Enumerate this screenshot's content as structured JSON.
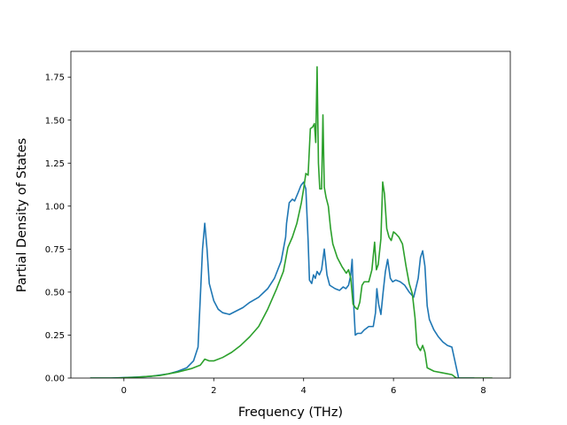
{
  "chart_data": {
    "type": "line",
    "xlabel": "Frequency (THz)",
    "ylabel": "Partial Density of States",
    "xlim": [
      -1.18,
      8.6
    ],
    "ylim": [
      0,
      1.9
    ],
    "xticks": [
      0,
      2,
      4,
      6,
      8
    ],
    "xtick_labels": [
      "0",
      "2",
      "4",
      "6",
      "8"
    ],
    "yticks": [
      0,
      0.25,
      0.5,
      0.75,
      1.0,
      1.25,
      1.5,
      1.75
    ],
    "ytick_labels": [
      "0.00",
      "0.25",
      "0.50",
      "0.75",
      "1.00",
      "1.25",
      "1.50",
      "1.75"
    ],
    "grid": false,
    "legend": "none",
    "series": [
      {
        "color": "#1f77b4",
        "x": [
          -0.75,
          -0.3,
          0.2,
          0.6,
          1.0,
          1.2,
          1.4,
          1.55,
          1.65,
          1.75,
          1.8,
          1.85,
          1.9,
          2.0,
          2.1,
          2.2,
          2.35,
          2.5,
          2.65,
          2.8,
          3.0,
          3.2,
          3.35,
          3.5,
          3.6,
          3.62,
          3.68,
          3.75,
          3.8,
          3.88,
          3.94,
          4.0,
          4.05,
          4.1,
          4.13,
          4.18,
          4.22,
          4.26,
          4.3,
          4.35,
          4.4,
          4.46,
          4.52,
          4.58,
          4.7,
          4.8,
          4.88,
          4.94,
          5.0,
          5.05,
          5.08,
          5.12,
          5.15,
          5.2,
          5.28,
          5.35,
          5.45,
          5.55,
          5.6,
          5.63,
          5.67,
          5.72,
          5.77,
          5.82,
          5.87,
          5.93,
          5.98,
          6.05,
          6.15,
          6.25,
          6.35,
          6.45,
          6.55,
          6.6,
          6.65,
          6.7,
          6.75,
          6.8,
          6.9,
          7.0,
          7.1,
          7.2,
          7.3,
          7.45,
          7.55,
          7.8
        ],
        "y": [
          0.0,
          0.0,
          0.005,
          0.01,
          0.025,
          0.04,
          0.06,
          0.1,
          0.18,
          0.75,
          0.9,
          0.75,
          0.55,
          0.45,
          0.4,
          0.38,
          0.37,
          0.39,
          0.41,
          0.44,
          0.47,
          0.52,
          0.58,
          0.68,
          0.82,
          0.9,
          1.02,
          1.04,
          1.03,
          1.08,
          1.12,
          1.14,
          1.1,
          0.8,
          0.57,
          0.55,
          0.6,
          0.58,
          0.62,
          0.6,
          0.63,
          0.75,
          0.6,
          0.54,
          0.52,
          0.51,
          0.53,
          0.52,
          0.54,
          0.6,
          0.69,
          0.4,
          0.25,
          0.26,
          0.26,
          0.28,
          0.3,
          0.3,
          0.38,
          0.52,
          0.43,
          0.37,
          0.5,
          0.62,
          0.69,
          0.58,
          0.56,
          0.57,
          0.56,
          0.54,
          0.5,
          0.47,
          0.58,
          0.7,
          0.74,
          0.65,
          0.42,
          0.34,
          0.28,
          0.24,
          0.21,
          0.19,
          0.18,
          0.0,
          0.0,
          0.0
        ]
      },
      {
        "color": "#2ca02c",
        "x": [
          -0.75,
          -0.2,
          0.3,
          0.8,
          1.2,
          1.5,
          1.7,
          1.8,
          1.9,
          2.0,
          2.2,
          2.4,
          2.6,
          2.8,
          3.0,
          3.2,
          3.4,
          3.55,
          3.65,
          3.75,
          3.85,
          3.95,
          4.0,
          4.05,
          4.1,
          4.15,
          4.2,
          4.24,
          4.27,
          4.3,
          4.33,
          4.36,
          4.4,
          4.43,
          4.46,
          4.5,
          4.55,
          4.6,
          4.65,
          4.75,
          4.85,
          4.95,
          5.0,
          5.05,
          5.1,
          5.15,
          5.2,
          5.25,
          5.3,
          5.35,
          5.45,
          5.52,
          5.58,
          5.62,
          5.66,
          5.72,
          5.76,
          5.8,
          5.85,
          5.9,
          5.95,
          6.0,
          6.05,
          6.12,
          6.2,
          6.28,
          6.35,
          6.42,
          6.48,
          6.52,
          6.55,
          6.6,
          6.65,
          6.7,
          6.75,
          6.9,
          7.1,
          7.3,
          7.4,
          7.6,
          8.2
        ],
        "y": [
          0.0,
          0.0,
          0.005,
          0.015,
          0.035,
          0.055,
          0.075,
          0.11,
          0.1,
          0.1,
          0.12,
          0.15,
          0.19,
          0.24,
          0.3,
          0.4,
          0.52,
          0.62,
          0.76,
          0.82,
          0.9,
          1.02,
          1.1,
          1.19,
          1.18,
          1.45,
          1.46,
          1.48,
          1.37,
          1.81,
          1.25,
          1.1,
          1.1,
          1.53,
          1.11,
          1.05,
          1.0,
          0.87,
          0.78,
          0.7,
          0.65,
          0.61,
          0.63,
          0.58,
          0.43,
          0.41,
          0.4,
          0.44,
          0.54,
          0.56,
          0.56,
          0.63,
          0.79,
          0.63,
          0.66,
          0.81,
          1.14,
          1.07,
          0.87,
          0.82,
          0.8,
          0.85,
          0.84,
          0.82,
          0.78,
          0.65,
          0.55,
          0.49,
          0.35,
          0.2,
          0.18,
          0.16,
          0.19,
          0.15,
          0.06,
          0.04,
          0.03,
          0.02,
          0.0,
          0.0,
          0.0
        ]
      }
    ]
  }
}
